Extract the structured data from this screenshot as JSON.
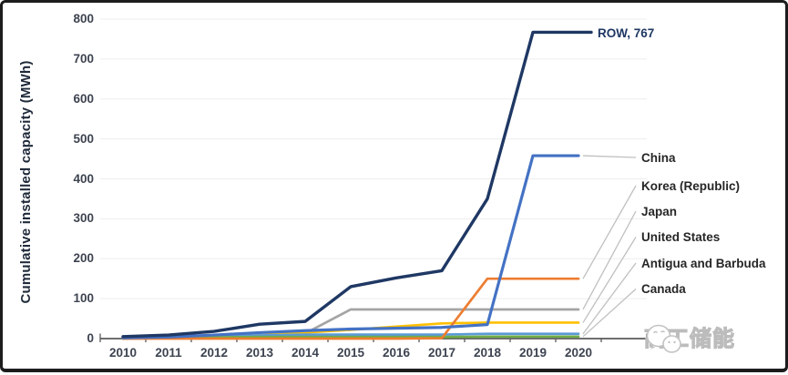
{
  "chart_data": {
    "type": "line",
    "title": "",
    "ylabel": "Cumulative installed capacity (MWh)",
    "xlabel": "",
    "categories": [
      "2010",
      "2011",
      "2012",
      "2013",
      "2014",
      "2015",
      "2016",
      "2017",
      "2018",
      "2019",
      "2020"
    ],
    "y_ticks": [
      "0",
      "100",
      "200",
      "300",
      "400",
      "500",
      "600",
      "700",
      "800"
    ],
    "ylim": [
      0,
      800
    ],
    "grid": true,
    "legend_position": "right-annotations",
    "series": [
      {
        "name": "ROW",
        "end_label": "ROW, 767",
        "color": "#1f3864",
        "width": 3.4,
        "values": [
          5,
          9,
          18,
          36,
          43,
          130,
          152,
          170,
          350,
          767,
          767
        ]
      },
      {
        "name": "China",
        "color": "#4472c4",
        "width": 3.2,
        "values": [
          2,
          4,
          9,
          15,
          20,
          24,
          26,
          28,
          35,
          458,
          458
        ]
      },
      {
        "name": "Korea (Republic)",
        "color": "#ed7d31",
        "width": 2.7,
        "values": [
          0,
          0,
          0,
          0,
          0,
          0,
          0,
          1,
          150,
          150,
          150
        ]
      },
      {
        "name": "Japan",
        "color": "#a5a5a5",
        "width": 2.7,
        "values": [
          2,
          3,
          5,
          8,
          13,
          73,
          73,
          73,
          73,
          73,
          73
        ]
      },
      {
        "name": "United States",
        "color": "#ffc000",
        "width": 2.7,
        "values": [
          1,
          2,
          4,
          8,
          15,
          22,
          30,
          38,
          40,
          40,
          40
        ]
      },
      {
        "name": "Antigua and Barbuda",
        "color": "#5b9bd5",
        "width": 2.7,
        "values": [
          0,
          2,
          4,
          8,
          10,
          10,
          10,
          10,
          12,
          12,
          12
        ]
      },
      {
        "name": "Canada",
        "color": "#70ad47",
        "width": 2.7,
        "values": [
          2,
          3,
          3,
          4,
          4,
          4,
          4,
          4,
          5,
          5,
          5
        ]
      }
    ]
  },
  "palette": {
    "axis": "#595959",
    "grid": "#ededed",
    "leader": "#c0c0c0",
    "tick_text": "#3d4350",
    "label_text": "#262626",
    "row_navy": "#1f3864",
    "watermark_gray": "#bcbcbc"
  },
  "watermark": {
    "text": "高工储能",
    "icon": "wechat-icon"
  }
}
